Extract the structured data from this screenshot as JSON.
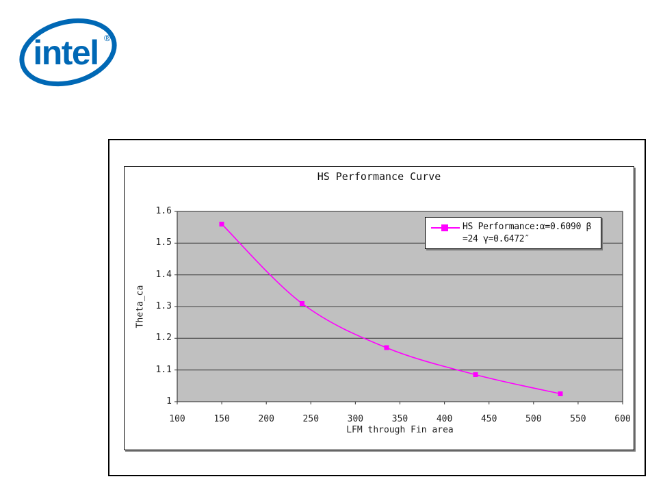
{
  "page": {
    "background": "#ffffff"
  },
  "logo": {
    "brand": "intel",
    "registered": "®",
    "color": "#0068b5"
  },
  "chart_data": {
    "type": "line",
    "title": "HS Performance Curve",
    "xlabel": "LFM through Fin area",
    "ylabel": "Theta_ca",
    "xlim": [
      100,
      600
    ],
    "ylim": [
      1,
      1.6
    ],
    "x_ticks": [
      "100",
      "150",
      "200",
      "250",
      "300",
      "350",
      "400",
      "450",
      "500",
      "550",
      "600"
    ],
    "y_ticks": [
      "1.6",
      "1.5",
      "1.4",
      "1.3",
      "1.2",
      "1.1",
      "1"
    ],
    "grid": "horizontal-major",
    "plot_bg": "#c0c0c0",
    "grid_color": "#404040",
    "series": [
      {
        "name": "HS Performance:α=0.6090 β=24 γ=0.6472″",
        "color": "#ff00ff",
        "marker": "square",
        "smoothed": true,
        "x": [
          150,
          240,
          335,
          435,
          530
        ],
        "y": [
          1.56,
          1.31,
          1.17,
          1.085,
          1.025
        ]
      }
    ],
    "legend": {
      "position": "upper-right",
      "lines": [
        "HS Performance:α=0.6090 β",
        "=24 γ=0.6472″"
      ]
    }
  }
}
